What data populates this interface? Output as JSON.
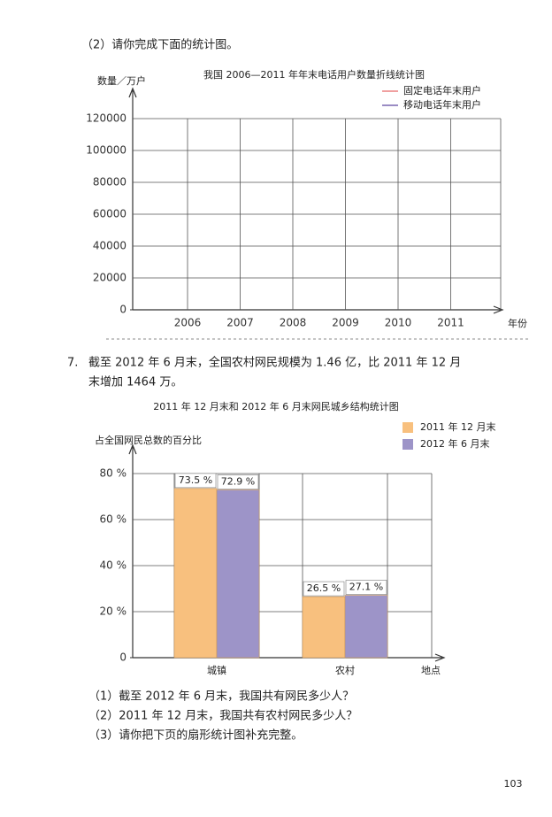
{
  "question_2": "（2）请你完成下面的统计图。",
  "problem_7": {
    "number": "7.",
    "lines": [
      "截至 2012 年 6 月末，全国农村网民规模为 1.46 亿，比 2011 年 12 月",
      "末增加 1464 万。"
    ]
  },
  "subquestions": [
    "（1）截至 2012 年 6 月末，我国共有网民多少人？",
    "（2）2011 年 12 月末，我国共有农村网民多少人？",
    "（3）请你把下页的扇形统计图补充完整。"
  ],
  "page_number": "103",
  "chart_data": [
    {
      "type": "line",
      "title": "我国 2006—2011 年年末电话用户数量折线统计图",
      "y_label": "数量／万户",
      "x_label": "年份",
      "categories": [
        "2006",
        "2007",
        "2008",
        "2009",
        "2010",
        "2011"
      ],
      "series": [
        {
          "name": "固定电话年末用户",
          "color": "#f0a0a0",
          "values": [
            null,
            null,
            null,
            null,
            null,
            null
          ]
        },
        {
          "name": "移动电话年末用户",
          "color": "#9a8cc4",
          "values": [
            null,
            null,
            null,
            null,
            null,
            null
          ]
        }
      ],
      "ylim": [
        0,
        120000
      ],
      "yticks": [
        0,
        20000,
        40000,
        60000,
        80000,
        100000,
        120000
      ],
      "grid": true
    },
    {
      "type": "bar",
      "title": "2011 年 12 月末和 2012 年 6 月末网民城乡结构统计图",
      "y_label": "占全国网民总数的百分比",
      "x_label": "地点",
      "categories": [
        "城镇",
        "农村"
      ],
      "series": [
        {
          "name": "2011 年 12 月末",
          "color": "#f8c07e",
          "values": [
            73.5,
            26.5
          ],
          "value_labels": [
            "73.5 %",
            "26.5 %"
          ]
        },
        {
          "name": "2012 年 6 月末",
          "color": "#9d94c8",
          "values": [
            72.9,
            27.1
          ],
          "value_labels": [
            "72.9 %",
            "27.1 %"
          ]
        }
      ],
      "ylim": [
        0,
        80
      ],
      "yticks": [
        {
          "value": 0,
          "label": "0"
        },
        {
          "value": 20,
          "label": "20 %"
        },
        {
          "value": 40,
          "label": "40 %"
        },
        {
          "value": 60,
          "label": "60 %"
        },
        {
          "value": 80,
          "label": "80 %"
        }
      ],
      "grid": true
    }
  ]
}
